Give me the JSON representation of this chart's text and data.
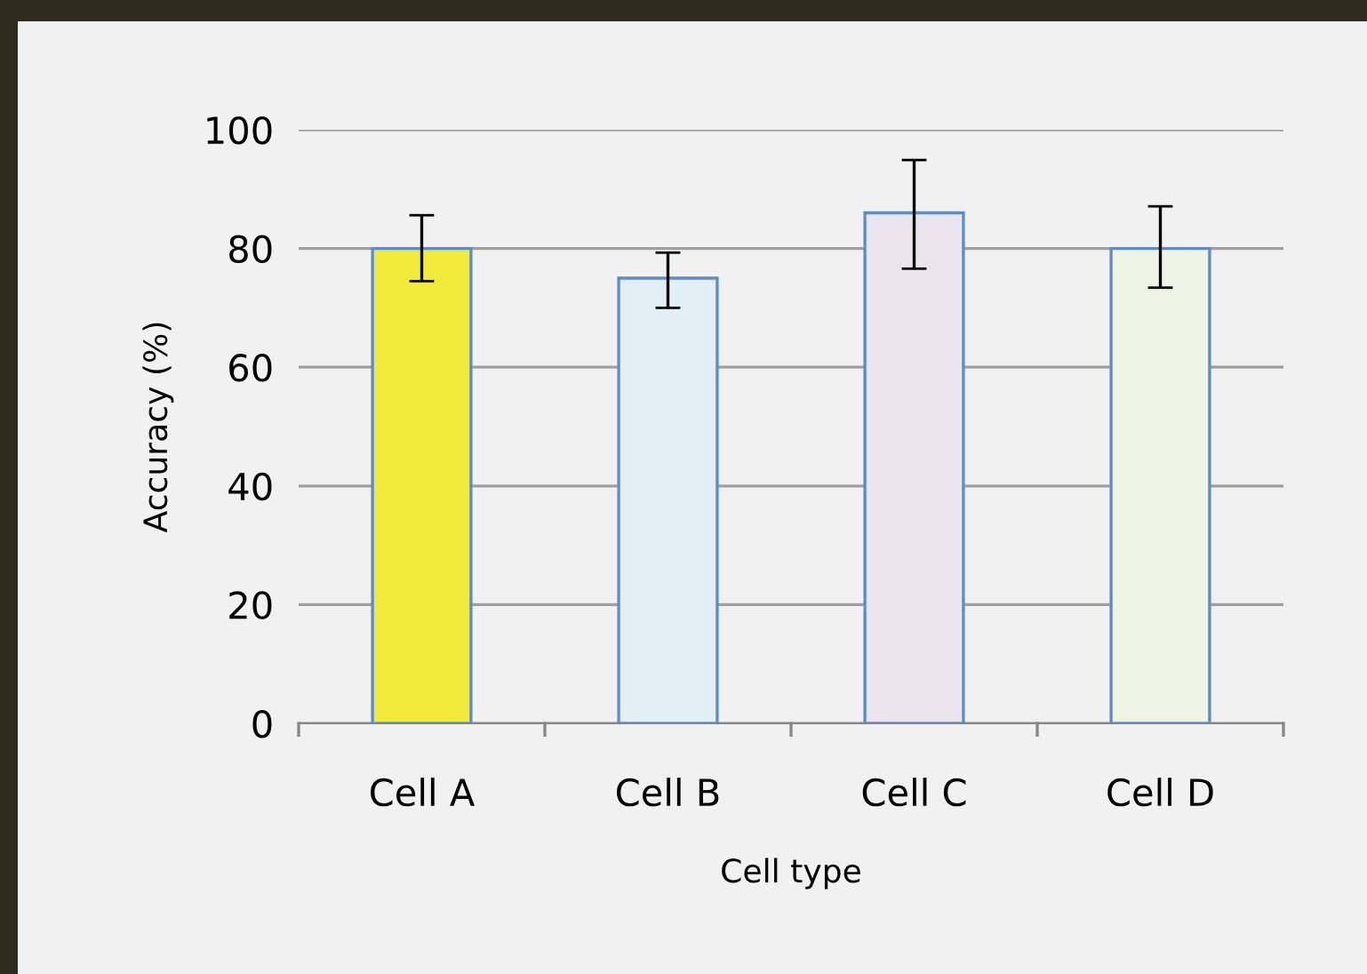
{
  "chart_data": {
    "type": "bar",
    "xlabel": "Cell type",
    "ylabel": "Accuracy (%)",
    "categories": [
      "Cell A",
      "Cell B",
      "Cell C",
      "Cell D"
    ],
    "values": [
      80,
      75,
      86,
      80
    ],
    "colors": [
      "#f2ea38",
      "#e2eff4",
      "#ece5f0",
      "#eef3e4"
    ],
    "errors": [
      [
        74.5,
        85.6
      ],
      [
        70,
        79.3
      ],
      [
        76.6,
        94.9
      ],
      [
        73.4,
        87.1
      ]
    ],
    "ylim": [
      0,
      100
    ],
    "yticks": [
      0,
      20,
      40,
      60,
      80,
      100
    ],
    "grid": "y",
    "legend": false
  }
}
